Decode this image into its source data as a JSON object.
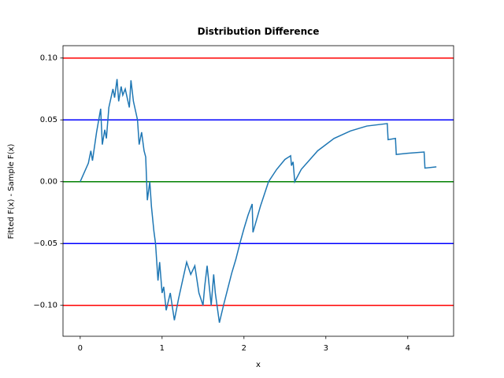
{
  "chart_data": {
    "type": "line",
    "title": "Distribution Difference",
    "xlabel": "x",
    "ylabel": "Fitted F(x) - Sample F(x)",
    "xlim": [
      -0.21,
      4.56
    ],
    "ylim": [
      -0.125,
      0.11
    ],
    "xticks": [
      0,
      1,
      2,
      3,
      4
    ],
    "yticks": [
      {
        "value": -0.1,
        "label": "−0.10"
      },
      {
        "value": -0.05,
        "label": "−0.05"
      },
      {
        "value": 0,
        "label": "0.00"
      },
      {
        "value": 0.05,
        "label": "0.05"
      },
      {
        "value": 0.1,
        "label": "0.10"
      }
    ],
    "hlines": [
      {
        "value": 0.1,
        "color": "#ff0000"
      },
      {
        "value": -0.1,
        "color": "#ff0000"
      },
      {
        "value": 0.05,
        "color": "#0000ff"
      },
      {
        "value": -0.05,
        "color": "#0000ff"
      },
      {
        "value": 0,
        "color": "#008000"
      }
    ],
    "series": [
      {
        "color": "#1f77b4",
        "x": [
          0,
          0.1,
          0.13,
          0.15,
          0.2,
          0.25,
          0.27,
          0.3,
          0.32,
          0.35,
          0.4,
          0.42,
          0.45,
          0.47,
          0.5,
          0.52,
          0.55,
          0.6,
          0.62,
          0.65,
          0.7,
          0.72,
          0.75,
          0.78,
          0.8,
          0.82,
          0.85,
          0.87,
          0.9,
          0.92,
          0.95,
          0.97,
          1.0,
          1.02,
          1.05,
          1.1,
          1.15,
          1.2,
          1.25,
          1.3,
          1.35,
          1.4,
          1.45,
          1.5,
          1.52,
          1.55,
          1.6,
          1.63,
          1.65,
          1.7,
          1.75,
          1.8,
          1.85,
          1.9,
          1.95,
          2.0,
          2.05,
          2.1,
          2.11,
          2.2,
          2.3,
          2.4,
          2.5,
          2.57,
          2.58,
          2.6,
          2.62,
          2.7,
          2.9,
          3.1,
          3.3,
          3.5,
          3.75,
          3.76,
          3.85,
          3.86,
          4.0,
          4.2,
          4.21,
          4.35
        ],
        "values": [
          0,
          0.015,
          0.025,
          0.017,
          0.04,
          0.059,
          0.03,
          0.042,
          0.035,
          0.06,
          0.075,
          0.068,
          0.083,
          0.065,
          0.077,
          0.07,
          0.075,
          0.06,
          0.082,
          0.065,
          0.05,
          0.03,
          0.04,
          0.025,
          0.02,
          -0.015,
          0,
          -0.02,
          -0.04,
          -0.05,
          -0.08,
          -0.065,
          -0.09,
          -0.085,
          -0.104,
          -0.09,
          -0.112,
          -0.095,
          -0.08,
          -0.065,
          -0.075,
          -0.068,
          -0.09,
          -0.1,
          -0.085,
          -0.068,
          -0.1,
          -0.075,
          -0.09,
          -0.114,
          -0.1,
          -0.087,
          -0.074,
          -0.063,
          -0.05,
          -0.038,
          -0.027,
          -0.018,
          -0.041,
          -0.02,
          0,
          0.01,
          0.018,
          0.021,
          0.013,
          0.016,
          0,
          0.01,
          0.025,
          0.035,
          0.041,
          0.045,
          0.047,
          0.034,
          0.035,
          0.022,
          0.023,
          0.024,
          0.011,
          0.012
        ]
      }
    ]
  }
}
